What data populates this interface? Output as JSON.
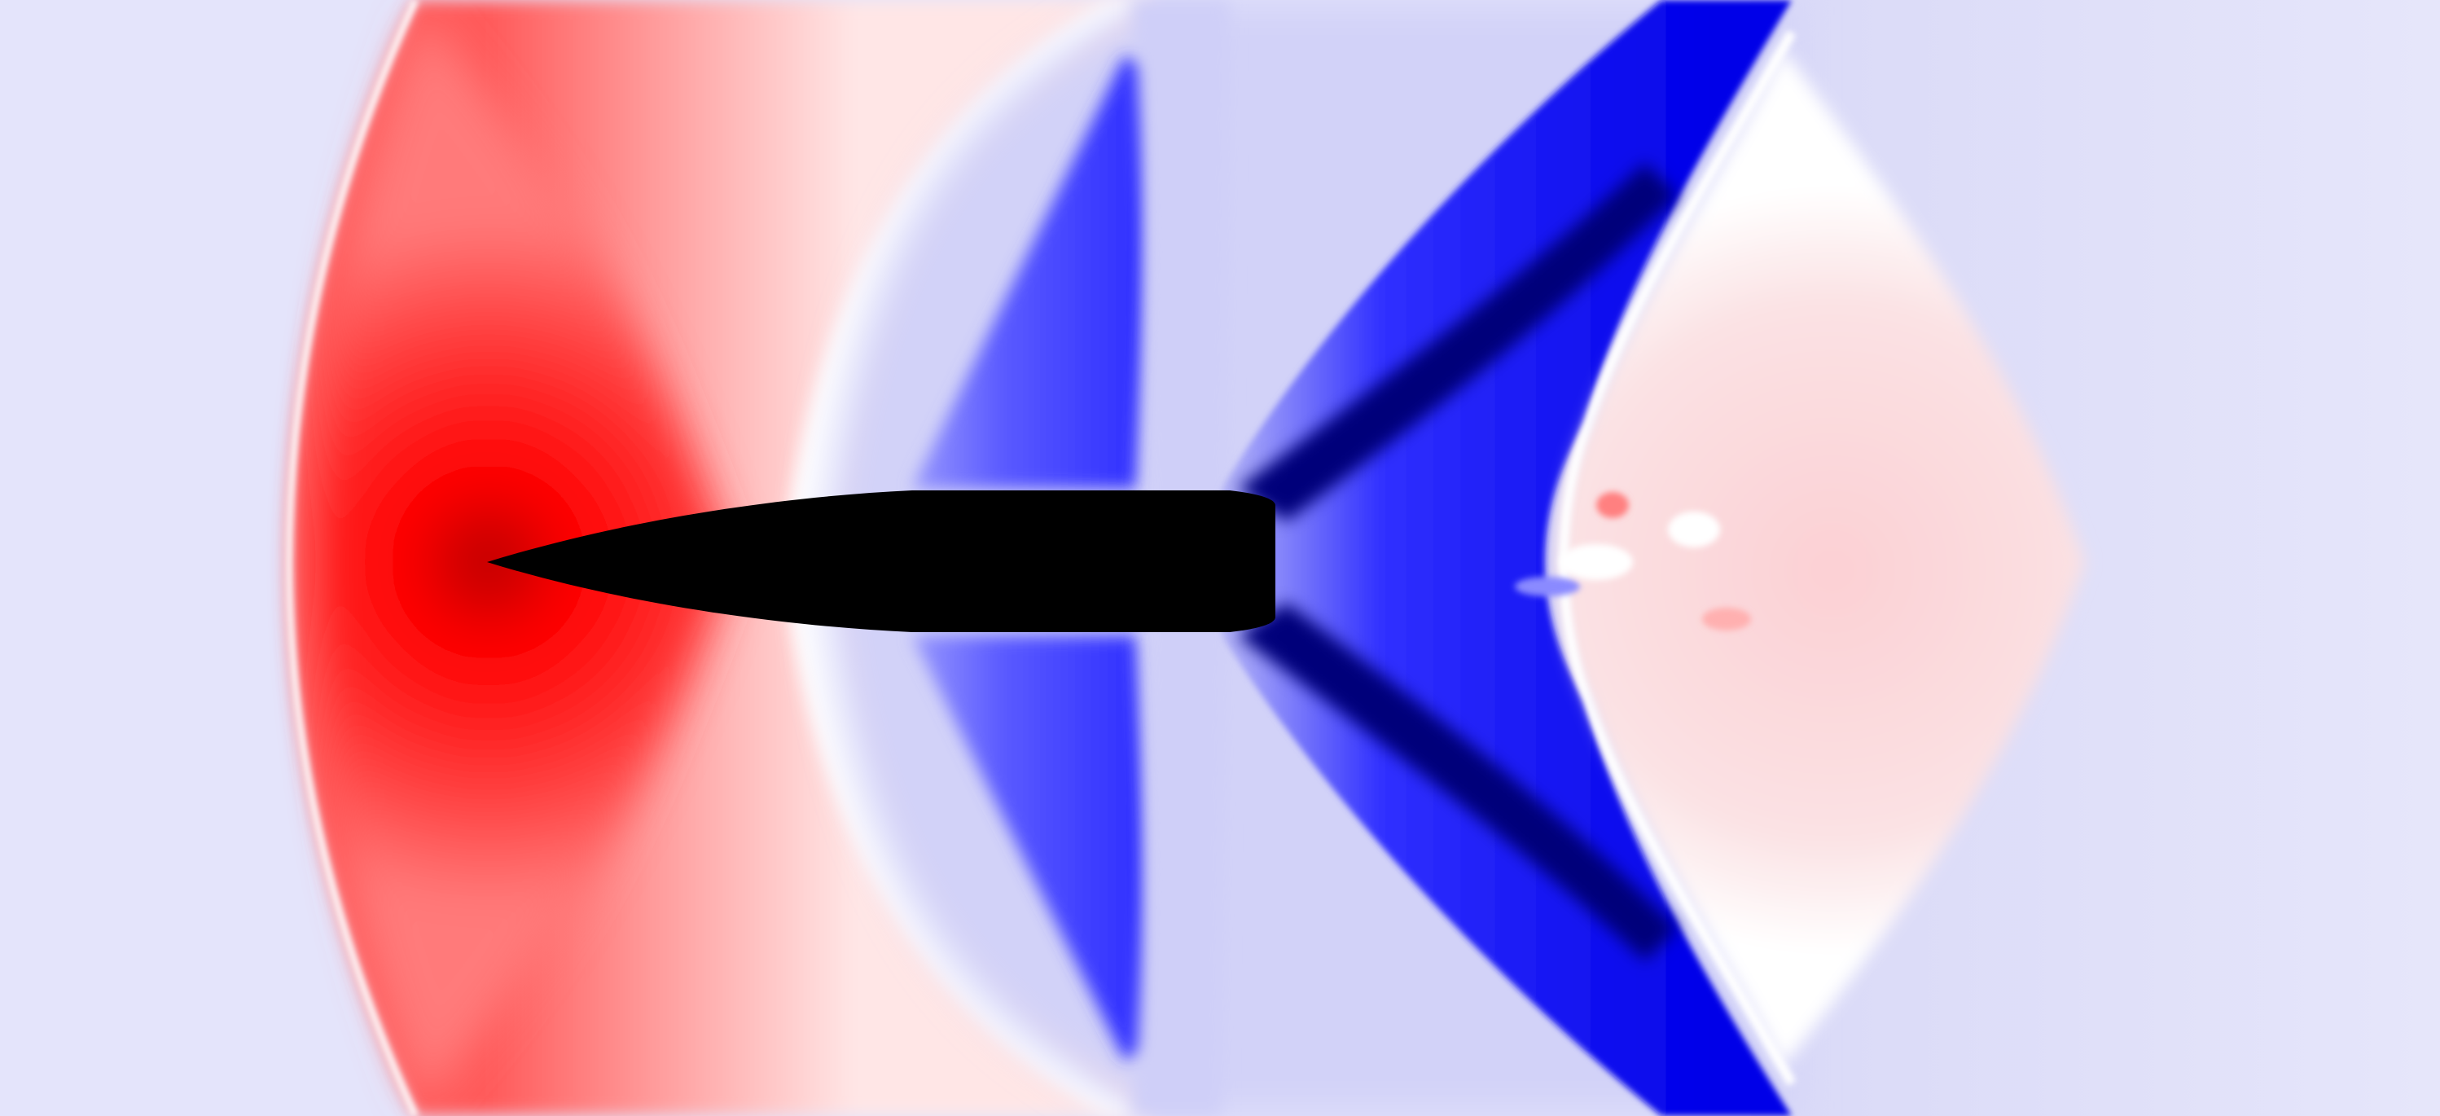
{
  "image": {
    "subject": "",
    "colors": {
      "ambient": "#e4e4fb",
      "compression": "#ff0000",
      "compression_core": "#c40000",
      "compression_light": "#ff9a9a",
      "compression_faint": "#fbd9dc",
      "neutral": "#ffffff",
      "expansion_light": "#c6c6f6",
      "expansion": "#3a3aff",
      "expansion_strong": "#0000f0",
      "expansion_dark": "#00008a",
      "body": "#000000"
    }
  }
}
